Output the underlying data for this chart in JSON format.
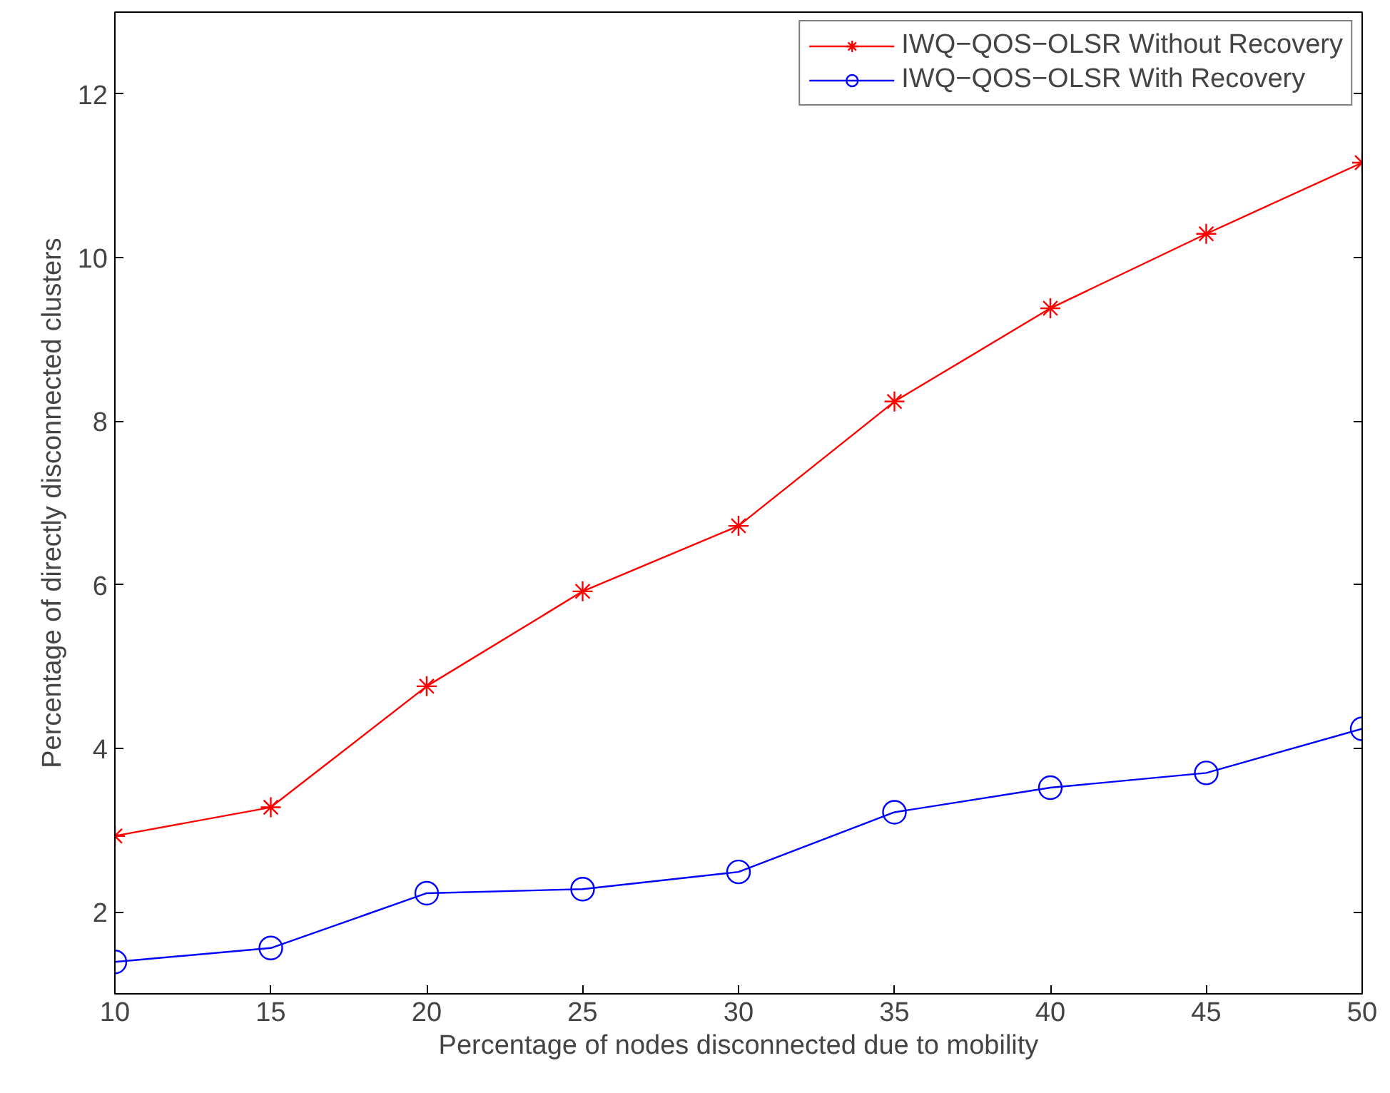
{
  "chart_data": {
    "type": "line",
    "xlabel": "Percentage of nodes disconnected due to mobility",
    "ylabel": "Percentage of directly disconnected clusters",
    "x": [
      10,
      15,
      20,
      25,
      30,
      35,
      40,
      45,
      50
    ],
    "series": [
      {
        "name": "IWQ−QOS−OLSR Without Recovery",
        "color": "#ff0000",
        "marker": "cross",
        "values": [
          2.93,
          3.28,
          4.76,
          5.92,
          6.72,
          8.24,
          9.38,
          10.29,
          11.16
        ]
      },
      {
        "name": "IWQ−QOS−OLSR With Recovery",
        "color": "#0000ff",
        "marker": "circle",
        "values": [
          1.39,
          1.56,
          2.23,
          2.28,
          2.49,
          3.22,
          3.52,
          3.7,
          4.24
        ]
      }
    ],
    "xlim": [
      10,
      50
    ],
    "ylim": [
      1,
      13
    ],
    "xticks": [
      10,
      15,
      20,
      25,
      30,
      35,
      40,
      45,
      50
    ],
    "yticks": [
      2,
      4,
      6,
      8,
      10,
      12
    ],
    "grid": false,
    "legend": "top right",
    "line_style": "solid"
  }
}
